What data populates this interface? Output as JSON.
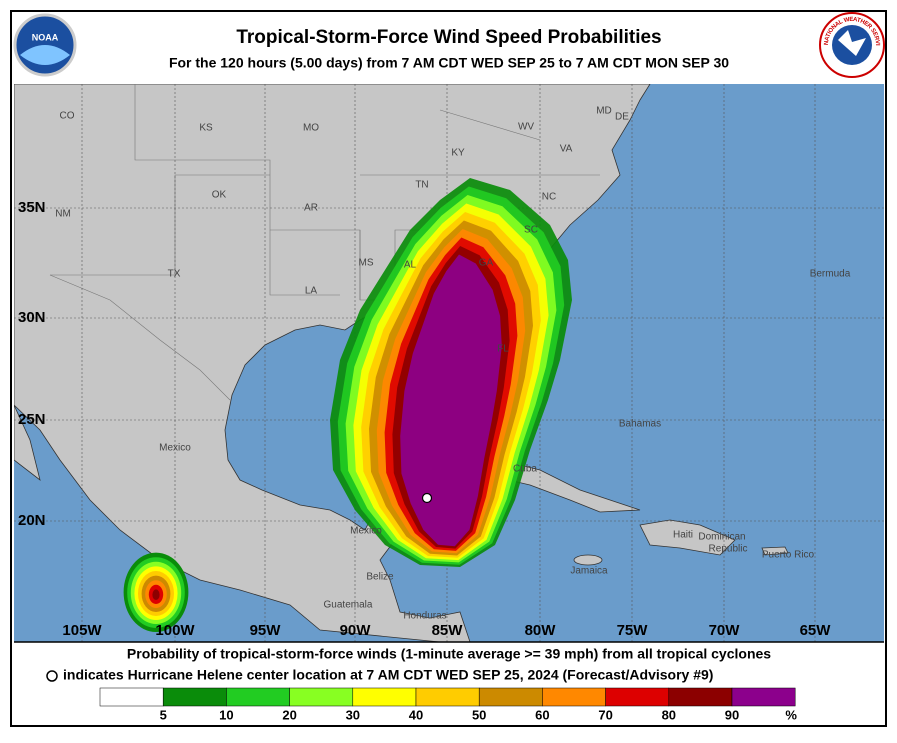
{
  "header": {
    "title": "Tropical-Storm-Force Wind Speed Probabilities",
    "subtitle": "For the 120 hours (5.00 days) from 7 AM CDT WED SEP 25 to 7 AM CDT MON SEP 30",
    "left_logo": "NOAA",
    "right_logo": "NATIONAL WEATHER SERVICE"
  },
  "map": {
    "latitude_labels": [
      "35N",
      "30N",
      "25N",
      "20N"
    ],
    "longitude_labels": [
      "105W",
      "100W",
      "95W",
      "90W",
      "85W",
      "80W",
      "75W",
      "70W",
      "65W"
    ],
    "place_labels": [
      "CO",
      "KS",
      "MO",
      "KY",
      "WV",
      "VA",
      "MD",
      "DE",
      "NM",
      "OK",
      "AR",
      "TN",
      "NC",
      "SC",
      "TX",
      "MS",
      "AL",
      "GA",
      "LA",
      "FL",
      "Bermuda",
      "Bahamas",
      "Mexico",
      "Cuba",
      "Mexico",
      "Haiti",
      "Dominican",
      "Republic",
      "Puerto Rico",
      "Jamaica",
      "Belize",
      "Guatemala",
      "Honduras"
    ]
  },
  "footer": {
    "line1": "Probability of tropical-storm-force winds (1-minute average >= 39 mph) from all tropical cyclones",
    "line2": "indicates Hurricane Helene center location at 7 AM CDT WED SEP 25, 2024 (Forecast/Advisory #9)"
  },
  "legend": {
    "ticks": [
      5,
      10,
      20,
      30,
      40,
      50,
      60,
      70,
      80,
      90
    ],
    "unit": "%",
    "colors": [
      "#ffffff",
      "#0a8c0a",
      "#22cc22",
      "#88ff22",
      "#ffff00",
      "#ffcc00",
      "#cc8a00",
      "#ff8800",
      "#dd0000",
      "#8c0000",
      "#8c008c"
    ]
  }
}
